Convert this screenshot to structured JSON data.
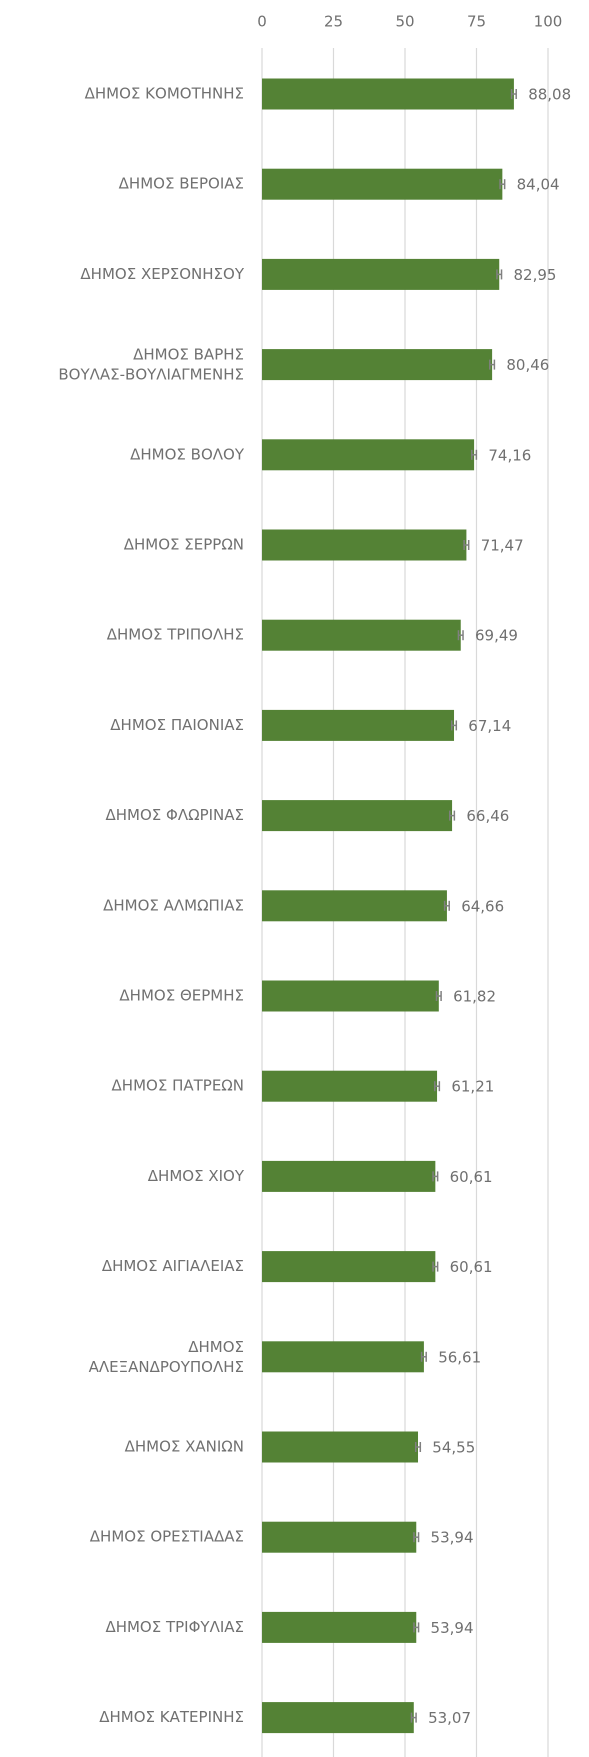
{
  "chart_data": {
    "type": "bar",
    "orientation": "horizontal",
    "categories": [
      "ΔΗΜΟΣ ΚΟΜΟΤΗΝΗΣ",
      "ΔΗΜΟΣ ΒΕΡΟΙΑΣ",
      "ΔΗΜΟΣ ΧΕΡΣΟΝΗΣΟΥ",
      "ΔΗΜΟΣ ΒΑΡΗΣ ΒΟΥΛΑΣ-ΒΟΥΛΙΑΓΜΕΝΗΣ",
      "ΔΗΜΟΣ ΒΟΛΟΥ",
      "ΔΗΜΟΣ ΣΕΡΡΩΝ",
      "ΔΗΜΟΣ ΤΡΙΠΟΛΗΣ",
      "ΔΗΜΟΣ ΠΑΙΟΝΙΑΣ",
      "ΔΗΜΟΣ ΦΛΩΡΙΝΑΣ",
      "ΔΗΜΟΣ ΑΛΜΩΠΙΑΣ",
      "ΔΗΜΟΣ ΘΕΡΜΗΣ",
      "ΔΗΜΟΣ ΠΑΤΡΕΩΝ",
      "ΔΗΜΟΣ ΧΙΟΥ",
      "ΔΗΜΟΣ ΑΙΓΙΑΛΕΙΑΣ",
      "ΔΗΜΟΣ ΑΛΕΞΑΝΔΡΟΥΠΟΛΗΣ",
      "ΔΗΜΟΣ ΧΑΝΙΩΝ",
      "ΔΗΜΟΣ ΟΡΕΣΤΙΑΔΑΣ",
      "ΔΗΜΟΣ ΤΡΙΦΥΛΙΑΣ",
      "ΔΗΜΟΣ ΚΑΤΕΡΙΝΗΣ"
    ],
    "values": [
      88.08,
      84.04,
      82.95,
      80.46,
      74.16,
      71.47,
      69.49,
      67.14,
      66.46,
      64.66,
      61.82,
      61.21,
      60.61,
      60.61,
      56.61,
      54.55,
      53.94,
      53.94,
      53.07
    ],
    "value_labels": [
      "88,08",
      "84,04",
      "82,95",
      "80,46",
      "74,16",
      "71,47",
      "69,49",
      "67,14",
      "66,46",
      "64,66",
      "61,82",
      "61,21",
      "60,61",
      "60,61",
      "56,61",
      "54,55",
      "53,94",
      "53,94",
      "53,07"
    ],
    "errors": [
      0.8,
      0.8,
      0.8,
      0.8,
      0.8,
      0.8,
      0.8,
      0.8,
      0.8,
      0.8,
      0.8,
      0.8,
      0.8,
      0.8,
      0.8,
      0.8,
      0.8,
      0.8,
      0.8
    ],
    "color": "#548235",
    "xlim": [
      0,
      100
    ],
    "xticks": [
      0,
      25,
      50,
      75,
      100
    ],
    "grid": true
  }
}
